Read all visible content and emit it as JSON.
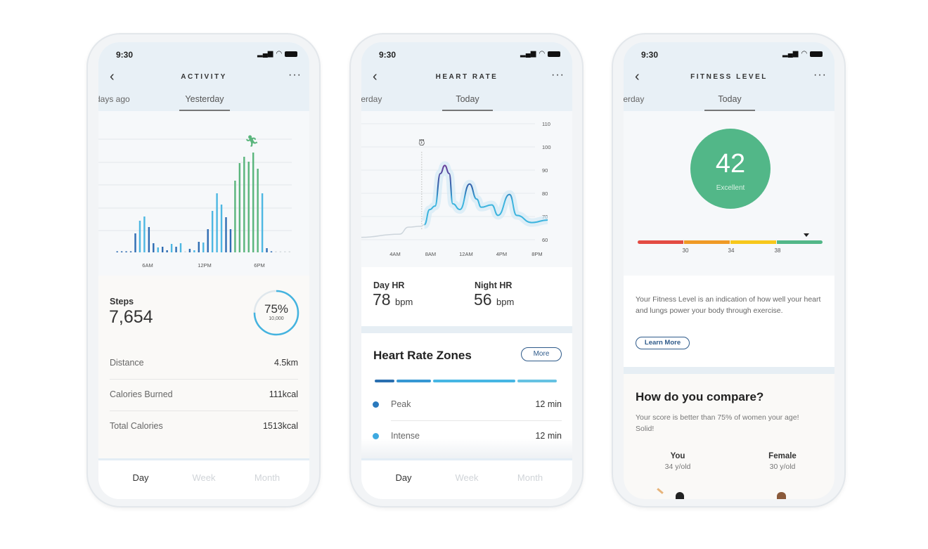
{
  "status_time": "9:30",
  "period_tabs": [
    "Day",
    "Week",
    "Month"
  ],
  "colors": {
    "accent_blue": "#3fb1e0",
    "dark_blue": "#2f6db3",
    "green": "#5ab57c",
    "fitness_green": "#52b788",
    "header_bg": "#e8f0f6"
  },
  "activity": {
    "title": "ACTIVITY",
    "tab_prev": "days ago",
    "tab_current": "Yesterday",
    "running-icon": "running-person-icon",
    "steps_label": "Steps",
    "steps_value": "7,654",
    "goal_percent": "75%",
    "goal_target": "10,000",
    "goal_progress": 0.75,
    "rows": [
      {
        "label": "Distance",
        "value": "4.5km"
      },
      {
        "label": "Calories Burned",
        "value": "111kcal"
      },
      {
        "label": "Total Calories",
        "value": "1513kcal"
      }
    ]
  },
  "heart_rate": {
    "title": "HEART RATE",
    "tab_prev": "terday",
    "tab_current": "Today",
    "day_hr_label": "Day HR",
    "day_hr_value": "78",
    "night_hr_label": "Night HR",
    "night_hr_value": "56",
    "unit": "bpm",
    "zones_title": "Heart Rate Zones",
    "zones_more": "More",
    "zones": [
      {
        "name": "Peak",
        "value": "12 min",
        "color": "#2a79bd"
      },
      {
        "name": "Intense",
        "value": "12 min",
        "color": "#3ea9e0"
      }
    ],
    "zone_bar": [
      {
        "share": 0.11,
        "color": "#2a6fb0"
      },
      {
        "share": 0.19,
        "color": "#3697d3"
      },
      {
        "share": 0.46,
        "color": "#46b6e3"
      },
      {
        "share": 0.22,
        "color": "#66c2e2"
      }
    ]
  },
  "fitness": {
    "title": "FITNESS LEVEL",
    "tab_prev": "terday",
    "tab_current": "Today",
    "score": "42",
    "rating": "Excellent",
    "scale_ticks": [
      "30",
      "34",
      "38"
    ],
    "scale_colors": [
      "#e34b43",
      "#ef9a26",
      "#f7c81c",
      "#52b788"
    ],
    "description": "Your Fitness Level is an indication of how well your heart and lungs power your body through exercise.",
    "learn_more": "Learn More",
    "compare_title": "How do you compare?",
    "compare_text": "Your score is better than 75% of women your age! Solid!",
    "you_label": "You",
    "you_age": "34 y/old",
    "female_label": "Female",
    "female_age": "30 y/old"
  },
  "chart_data": [
    {
      "type": "bar",
      "x_tick_labels": [
        "6AM",
        "12PM",
        "6PM"
      ],
      "values": [
        0.5,
        0.5,
        0.5,
        0.5,
        27,
        45,
        51,
        36,
        13,
        7,
        8,
        3,
        12,
        8,
        13,
        0.5,
        5,
        3,
        15,
        14,
        33,
        59,
        84,
        68,
        50,
        33,
        102,
        127,
        136,
        129,
        142,
        119,
        84,
        6,
        0.5,
        0.5,
        0.5,
        0.5,
        0.5
      ],
      "colors": [
        "d",
        "d",
        "d",
        "d",
        "d",
        "l",
        "l",
        "d",
        "d",
        "l",
        "d",
        "d",
        "l",
        "d",
        "l",
        "g",
        "d",
        "l",
        "d",
        "l",
        "d",
        "l",
        "l",
        "l",
        "d",
        "d",
        "G",
        "G",
        "G",
        "G",
        "G",
        "G",
        "l",
        "d",
        "d",
        "f",
        "f",
        "f",
        "f"
      ],
      "grid": true
    },
    {
      "type": "line",
      "x_tick_labels": [
        "4AM",
        "8AM",
        "12AM",
        "4PM",
        "8PM"
      ],
      "y_ticks": [
        60,
        70,
        80,
        90,
        100,
        110
      ],
      "ylim": [
        60,
        110
      ],
      "alarm_hour": 7,
      "points": [
        [
          0,
          61
        ],
        [
          4.5,
          62.4
        ],
        [
          5.5,
          65.4
        ],
        [
          6.9,
          65.8
        ],
        [
          7.3,
          66.5
        ],
        [
          7.9,
          73
        ],
        [
          8.5,
          74.5
        ],
        [
          9.1,
          88.5
        ],
        [
          9.6,
          92
        ],
        [
          10.1,
          88.5
        ],
        [
          10.5,
          75.5
        ],
        [
          11.3,
          73
        ],
        [
          12.4,
          84
        ],
        [
          13.2,
          77.5
        ],
        [
          13.7,
          74
        ],
        [
          14.9,
          75
        ],
        [
          15.6,
          70.5
        ],
        [
          16.9,
          79.5
        ],
        [
          17.7,
          70.5
        ],
        [
          19.4,
          67.4
        ],
        [
          21.2,
          68.5
        ]
      ],
      "grid": true
    }
  ]
}
